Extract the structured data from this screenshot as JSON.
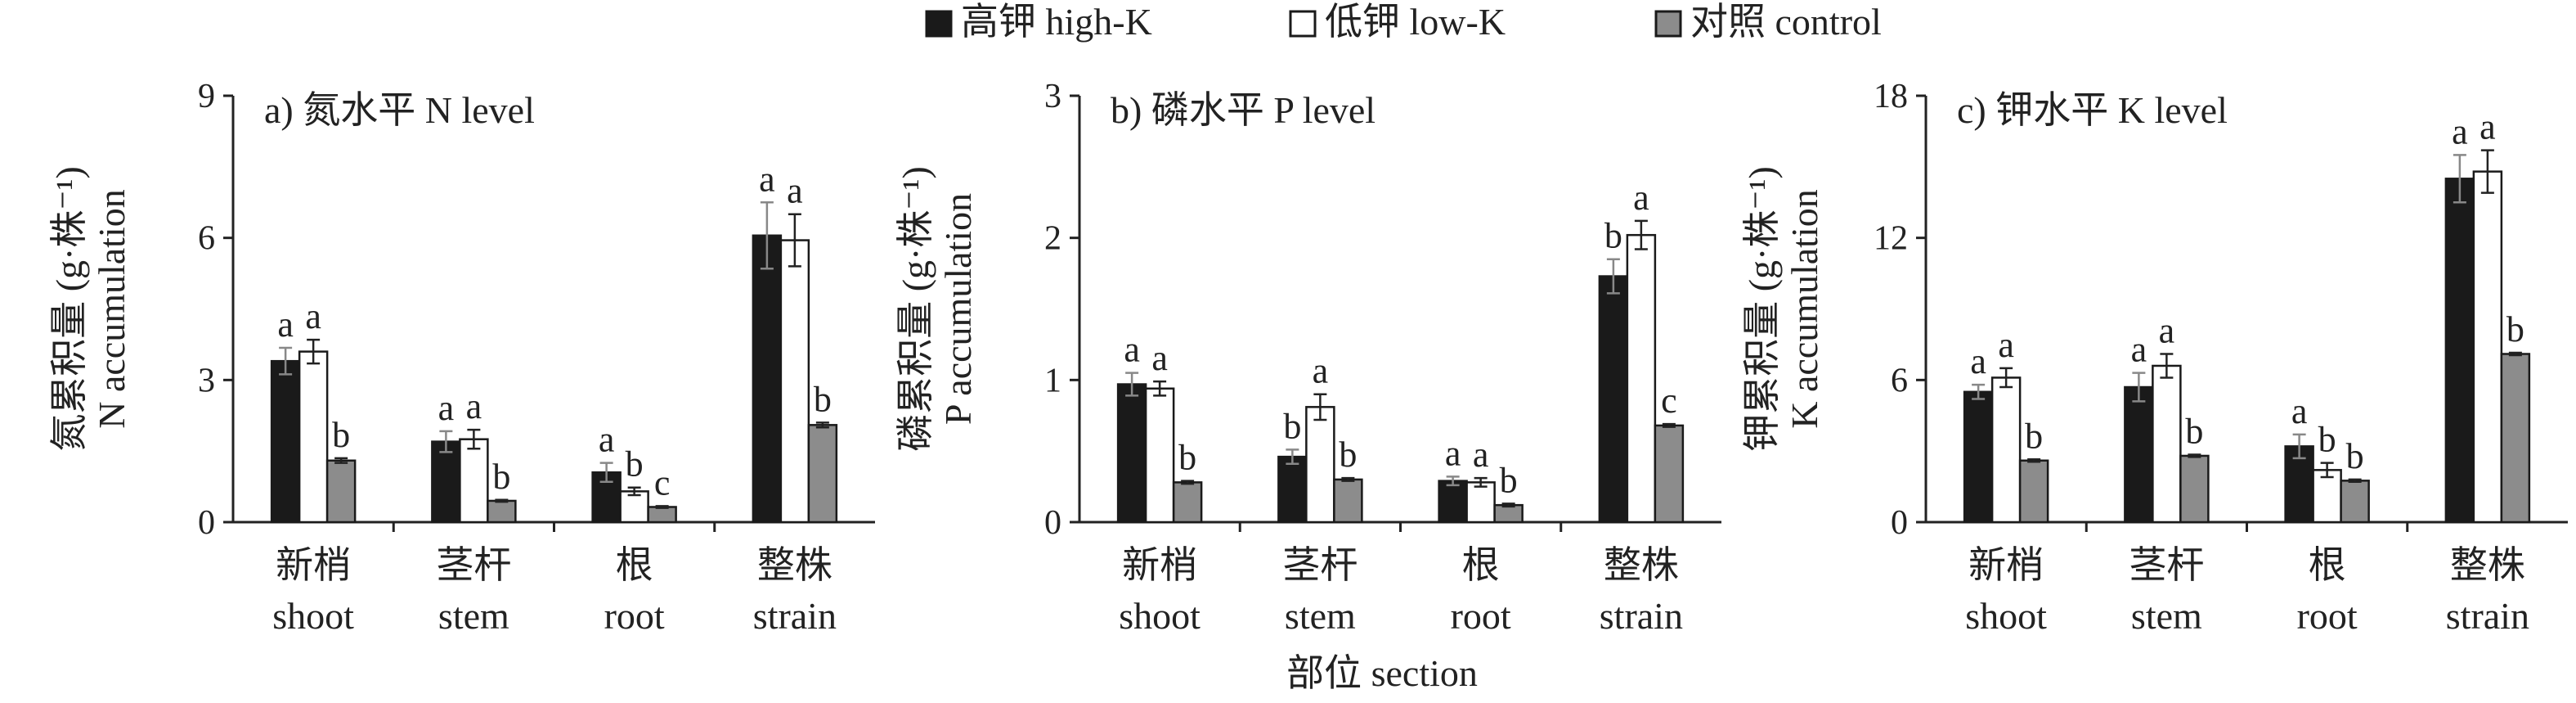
{
  "legend": [
    {
      "label": "高钾 high-K",
      "color": "#1a1a1a"
    },
    {
      "label": "低钾 low-K",
      "color": "#ffffff"
    },
    {
      "label": "对照 control",
      "color": "#8c8c8c"
    }
  ],
  "shared_xlabel": "部位 section",
  "categories": [
    {
      "cn": "新梢",
      "en": "shoot"
    },
    {
      "cn": "茎杆",
      "en": "stem"
    },
    {
      "cn": "根",
      "en": "root"
    },
    {
      "cn": "整株",
      "en": "strain"
    }
  ],
  "chart_data": [
    {
      "type": "bar",
      "title": "a) 氮水平 N level",
      "ylabel_cn": "氮累积量 (g·株⁻¹)",
      "ylabel_en": "N accumulation",
      "ylim": [
        0,
        9
      ],
      "yticks": [
        0,
        3,
        6,
        9
      ],
      "categories": [
        "shoot",
        "stem",
        "root",
        "strain"
      ],
      "series": [
        {
          "name": "高钾 high-K",
          "values": [
            3.4,
            1.7,
            1.05,
            6.05
          ],
          "errors": [
            0.28,
            0.22,
            0.2,
            0.7
          ],
          "letters": [
            "a",
            "a",
            "a",
            "a"
          ]
        },
        {
          "name": "低钾 low-K",
          "values": [
            3.6,
            1.75,
            0.65,
            5.95
          ],
          "errors": [
            0.25,
            0.2,
            0.08,
            0.55
          ],
          "letters": [
            "a",
            "a",
            "b",
            "a"
          ]
        },
        {
          "name": "对照 control",
          "values": [
            1.3,
            0.45,
            0.32,
            2.05
          ],
          "errors": [
            0.05,
            0.02,
            0.02,
            0.05
          ],
          "letters": [
            "b",
            "b",
            "c",
            "b"
          ]
        }
      ]
    },
    {
      "type": "bar",
      "title": "b) 磷水平 P level",
      "ylabel_cn": "磷累积量 (g·株⁻¹)",
      "ylabel_en": "P accumulation",
      "ylim": [
        0,
        3
      ],
      "yticks": [
        0,
        1,
        2,
        3
      ],
      "categories": [
        "shoot",
        "stem",
        "root",
        "strain"
      ],
      "series": [
        {
          "name": "高钾 high-K",
          "values": [
            0.97,
            0.46,
            0.29,
            1.73
          ],
          "errors": [
            0.08,
            0.05,
            0.03,
            0.12
          ],
          "letters": [
            "a",
            "b",
            "a",
            "b"
          ]
        },
        {
          "name": "低钾 low-K",
          "values": [
            0.94,
            0.81,
            0.28,
            2.02
          ],
          "errors": [
            0.05,
            0.09,
            0.03,
            0.1
          ],
          "letters": [
            "a",
            "a",
            "a",
            "a"
          ]
        },
        {
          "name": "对照 control",
          "values": [
            0.28,
            0.3,
            0.12,
            0.68
          ],
          "errors": [
            0.01,
            0.01,
            0.01,
            0.01
          ],
          "letters": [
            "b",
            "b",
            "b",
            "c"
          ]
        }
      ]
    },
    {
      "type": "bar",
      "title": "c) 钾水平 K level",
      "ylabel_cn": "钾累积量 (g·株⁻¹)",
      "ylabel_en": "K accumulation",
      "ylim": [
        0,
        18
      ],
      "yticks": [
        0,
        6,
        12,
        18
      ],
      "categories": [
        "shoot",
        "stem",
        "root",
        "strain"
      ],
      "series": [
        {
          "name": "高钾 high-K",
          "values": [
            5.5,
            5.7,
            3.2,
            14.5
          ],
          "errors": [
            0.3,
            0.6,
            0.5,
            1.0
          ],
          "letters": [
            "a",
            "a",
            "a",
            "a"
          ]
        },
        {
          "name": "低钾 low-K",
          "values": [
            6.1,
            6.6,
            2.2,
            14.8
          ],
          "errors": [
            0.4,
            0.5,
            0.3,
            0.9
          ],
          "letters": [
            "a",
            "a",
            "b",
            "a"
          ]
        },
        {
          "name": "对照 control",
          "values": [
            2.6,
            2.8,
            1.75,
            7.1
          ],
          "errors": [
            0.05,
            0.05,
            0.05,
            0.05
          ],
          "letters": [
            "b",
            "b",
            "b",
            "b"
          ]
        }
      ]
    }
  ]
}
